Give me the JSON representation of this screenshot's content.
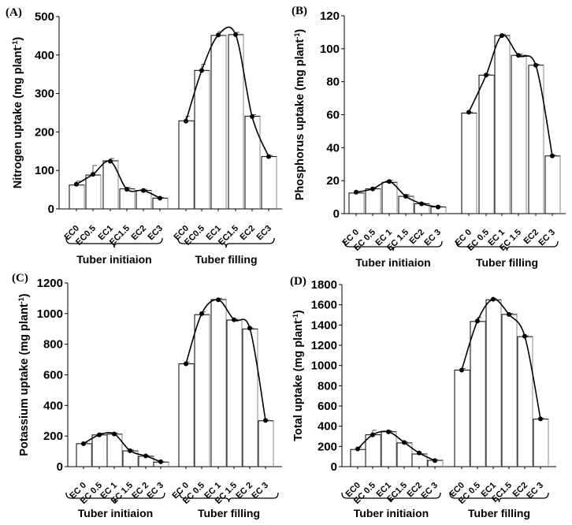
{
  "groups": [
    "Tuber initiaion",
    "Tuber filling"
  ],
  "categories": [
    "EC0",
    "EC 0.5",
    "EC1",
    "EC 1.5",
    "EC2",
    "EC 3"
  ],
  "chart_data": [
    {
      "type": "bar",
      "panel": "(A)",
      "ylabel": "Nitrogen uptake (mg plant",
      "ylabel_sup": "-1",
      "ylabel_close": ")",
      "ylim": [
        0,
        500
      ],
      "yticks": [
        0,
        100,
        200,
        300,
        400,
        500
      ],
      "categories": [
        "EC0",
        "EC0.5",
        "EC1",
        "EC1.5",
        "EC2",
        "EC3"
      ],
      "groups": [
        {
          "name": "Tuber initiaion",
          "values": [
            62,
            88,
            125,
            52,
            48,
            28
          ],
          "errors": [
            10,
            25,
            6,
            4,
            3,
            2
          ]
        },
        {
          "name": "Tuber filling",
          "values": [
            229,
            360,
            451,
            453,
            241,
            136
          ],
          "errors": [
            12,
            16,
            10,
            6,
            4,
            3
          ]
        }
      ],
      "trend_values": [
        [
          64,
          90,
          124,
          51,
          48,
          28
        ],
        [
          228,
          360,
          452,
          453,
          240,
          136
        ]
      ]
    },
    {
      "type": "bar",
      "panel": "(B)",
      "ylabel": "Phosphorus uptake (mg plant",
      "ylabel_sup": "-1",
      "ylabel_close": ")",
      "ylim": [
        0,
        120
      ],
      "yticks": [
        0,
        20,
        40,
        60,
        80,
        100,
        120
      ],
      "categories": [
        "EC 0",
        "EC 0.5",
        "EC 1",
        "EC 1.5",
        "EC2",
        "EC 3"
      ],
      "groups": [
        {
          "name": "Tuber initiaion",
          "values": [
            12.5,
            15,
            19,
            10.5,
            6,
            4
          ],
          "errors": [
            0.6,
            0.6,
            1.2,
            1,
            0.4,
            0.3
          ]
        },
        {
          "name": "Tuber filling",
          "values": [
            61,
            84,
            108,
            96,
            90,
            35
          ],
          "errors": [
            0.6,
            0.6,
            0.8,
            0.8,
            0.6,
            0.4
          ]
        }
      ],
      "trend_values": [
        [
          13,
          15,
          19.5,
          10.5,
          6,
          4
        ],
        [
          61.5,
          84,
          108,
          96,
          90,
          35
        ]
      ]
    },
    {
      "type": "bar",
      "panel": "(C)",
      "ylabel": "Potassium uptake (mg plant",
      "ylabel_sup": "-1",
      "ylabel_close": ")",
      "ylim": [
        0,
        1200
      ],
      "yticks": [
        0,
        200,
        400,
        600,
        800,
        1000,
        1200
      ],
      "categories": [
        "EC 0",
        "EC 0.5",
        "EC 1",
        "EC 1.5",
        "EC 2",
        "EC 3"
      ],
      "groups": [
        {
          "name": "Tuber initiaion",
          "values": [
            150,
            207,
            212,
            103,
            68,
            30
          ],
          "errors": [
            8,
            12,
            8,
            6,
            4,
            3
          ]
        },
        {
          "name": "Tuber filling",
          "values": [
            672,
            993,
            1092,
            958,
            900,
            300
          ],
          "errors": [
            12,
            18,
            8,
            6,
            6,
            4
          ]
        }
      ],
      "trend_values": [
        [
          150,
          208,
          214,
          104,
          70,
          32
        ],
        [
          672,
          1000,
          1090,
          960,
          905,
          302
        ]
      ]
    },
    {
      "type": "bar",
      "panel": "(D)",
      "ylabel": "Total uptake (mg plant",
      "ylabel_sup": "-1",
      "ylabel_close": ")",
      "ylim": [
        0,
        1800
      ],
      "yticks": [
        0,
        200,
        400,
        600,
        800,
        1000,
        1200,
        1400,
        1600,
        1800
      ],
      "categories": [
        "EC0",
        "EC 0.5",
        "EC1",
        "EC1.5",
        "EC2",
        "EC 3"
      ],
      "groups": [
        {
          "name": "Tuber initiaion",
          "values": [
            170,
            315,
            345,
            235,
            125,
            62
          ],
          "errors": [
            20,
            45,
            10,
            8,
            6,
            4
          ]
        },
        {
          "name": "Tuber filling",
          "values": [
            955,
            1435,
            1650,
            1505,
            1285,
            470
          ],
          "errors": [
            15,
            40,
            10,
            10,
            8,
            6
          ]
        }
      ],
      "trend_values": [
        [
          175,
          315,
          345,
          240,
          135,
          60
        ],
        [
          955,
          1440,
          1655,
          1505,
          1290,
          472
        ]
      ]
    }
  ]
}
